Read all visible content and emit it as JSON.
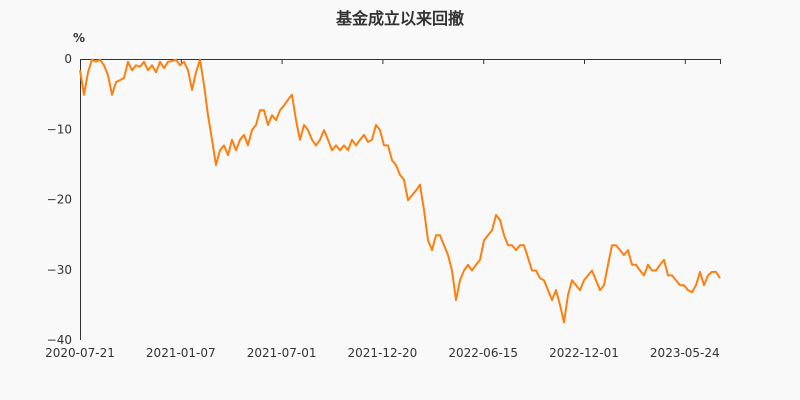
{
  "chart_data": {
    "type": "line",
    "title": "基金成立以来回撤",
    "ylabel": "%",
    "xlabel": "",
    "ylim": [
      -40,
      0
    ],
    "yticks": [
      "0",
      "−10",
      "−20",
      "−30",
      "−40"
    ],
    "ytick_values": [
      0,
      -10,
      -20,
      -30,
      -40
    ],
    "xticks": [
      "2020-07-21",
      "2021-01-07",
      "2021-07-01",
      "2021-12-20",
      "2022-06-15",
      "2022-12-01",
      "2023-05-24"
    ],
    "grid": false,
    "color": "#ff7f0e",
    "series": [
      {
        "values": [
          -1.6,
          -5.1,
          -1.9,
          -0.1,
          -0.4,
          -0.1,
          -0.9,
          -2.3,
          -5.1,
          -3.3,
          -3.0,
          -2.7,
          -0.4,
          -1.6,
          -0.9,
          -1.1,
          -0.4,
          -1.6,
          -0.9,
          -1.9,
          -0.4,
          -1.3,
          -0.4,
          -0.3,
          -0.1,
          -0.9,
          -0.4,
          -1.6,
          -4.4,
          -1.9,
          -0.1,
          -3.7,
          -8.0,
          -11.5,
          -15.1,
          -13.0,
          -12.3,
          -13.7,
          -11.5,
          -13.0,
          -11.5,
          -10.8,
          -12.3,
          -10.1,
          -9.4,
          -7.3,
          -7.3,
          -9.4,
          -8.0,
          -8.7,
          -7.3,
          -6.6,
          -5.8,
          -5.1,
          -8.7,
          -11.5,
          -9.4,
          -10.1,
          -11.5,
          -12.3,
          -11.5,
          -10.1,
          -11.5,
          -13.0,
          -12.3,
          -13.0,
          -12.3,
          -13.0,
          -11.5,
          -12.3,
          -11.5,
          -10.8,
          -11.8,
          -11.5,
          -9.4,
          -10.1,
          -12.3,
          -12.3,
          -14.4,
          -15.1,
          -16.5,
          -17.2,
          -20.1,
          -19.4,
          -18.7,
          -17.9,
          -21.5,
          -25.8,
          -27.2,
          -25.1,
          -25.1,
          -26.5,
          -27.9,
          -30.1,
          -34.3,
          -31.5,
          -30.1,
          -29.3,
          -30.1,
          -29.3,
          -28.6,
          -25.8,
          -25.1,
          -24.4,
          -22.2,
          -22.9,
          -25.1,
          -26.5,
          -26.5,
          -27.2,
          -26.5,
          -26.5,
          -28.3,
          -30.1,
          -30.1,
          -31.2,
          -31.5,
          -32.9,
          -34.3,
          -32.9,
          -35.0,
          -37.5,
          -33.6,
          -31.5,
          -32.2,
          -32.9,
          -31.5,
          -30.8,
          -30.1,
          -31.5,
          -32.9,
          -32.2,
          -29.3,
          -26.5,
          -26.5,
          -27.2,
          -27.9,
          -27.2,
          -29.3,
          -29.3,
          -30.1,
          -30.8,
          -29.3,
          -30.1,
          -30.1,
          -29.3,
          -28.6,
          -30.8,
          -30.8,
          -31.5,
          -32.2,
          -32.2,
          -32.9,
          -33.2,
          -32.2,
          -30.3,
          -32.2,
          -30.8,
          -30.3,
          -30.3,
          -31.2
        ]
      }
    ]
  }
}
